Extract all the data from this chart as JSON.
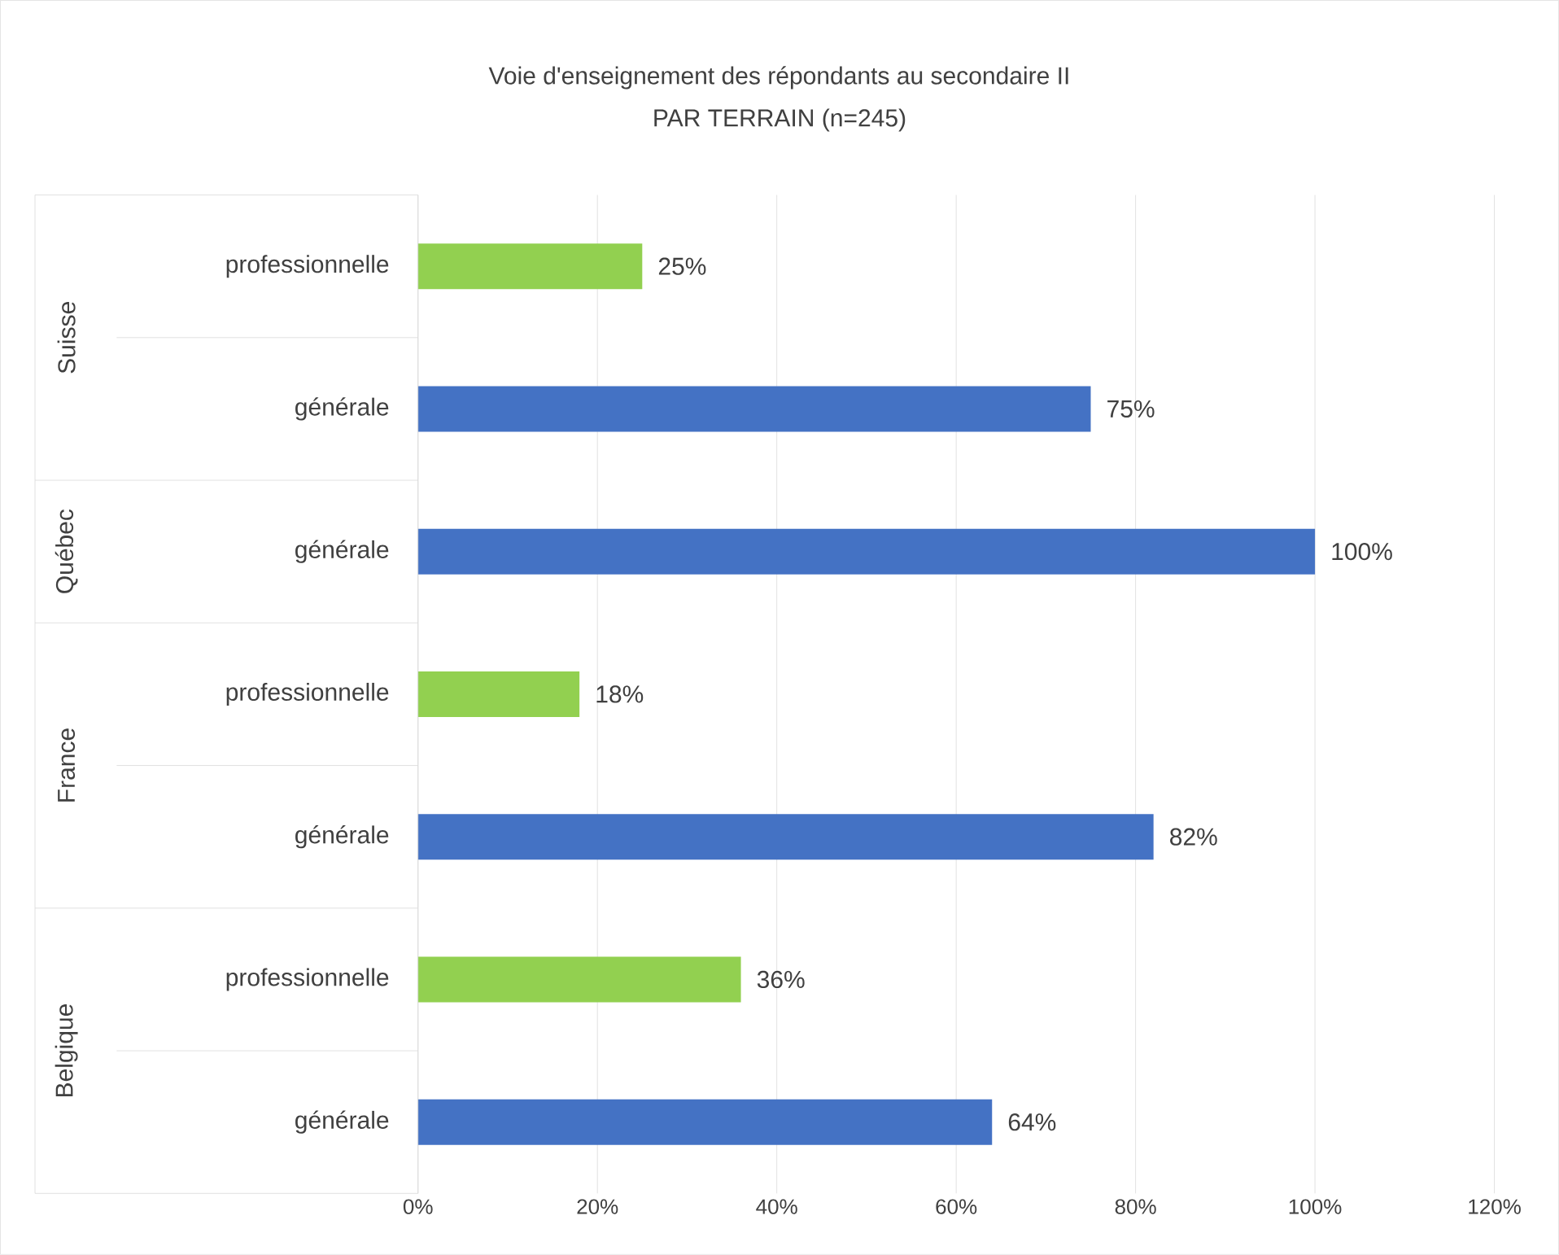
{
  "chart_data": {
    "type": "bar",
    "orientation": "horizontal",
    "title": "Voie d'enseignement des répondants au secondaire II",
    "subtitle": "PAR TERRAIN (n=245)",
    "categories": [
      "professionnelle",
      "générale",
      "générale",
      "professionnelle",
      "générale",
      "professionnelle",
      "générale"
    ],
    "values": [
      25,
      75,
      100,
      18,
      82,
      36,
      64
    ],
    "colors": [
      "#92d050",
      "#4472c4",
      "#4472c4",
      "#92d050",
      "#4472c4",
      "#92d050",
      "#4472c4"
    ],
    "value_labels": [
      "25%",
      "75%",
      "100%",
      "18%",
      "82%",
      "36%",
      "64%"
    ],
    "annotations": [
      "Suisse",
      "Québec",
      "France",
      "Belgique"
    ],
    "xlim": [
      0,
      120
    ],
    "xticks": [
      {
        "value": 0,
        "label": "0%"
      },
      {
        "value": 20,
        "label": "20%"
      },
      {
        "value": 40,
        "label": "40%"
      },
      {
        "value": 60,
        "label": "60%"
      },
      {
        "value": 80,
        "label": "80%"
      },
      {
        "value": 100,
        "label": "100%"
      },
      {
        "value": 120,
        "label": "120%"
      }
    ],
    "grid": "x"
  }
}
